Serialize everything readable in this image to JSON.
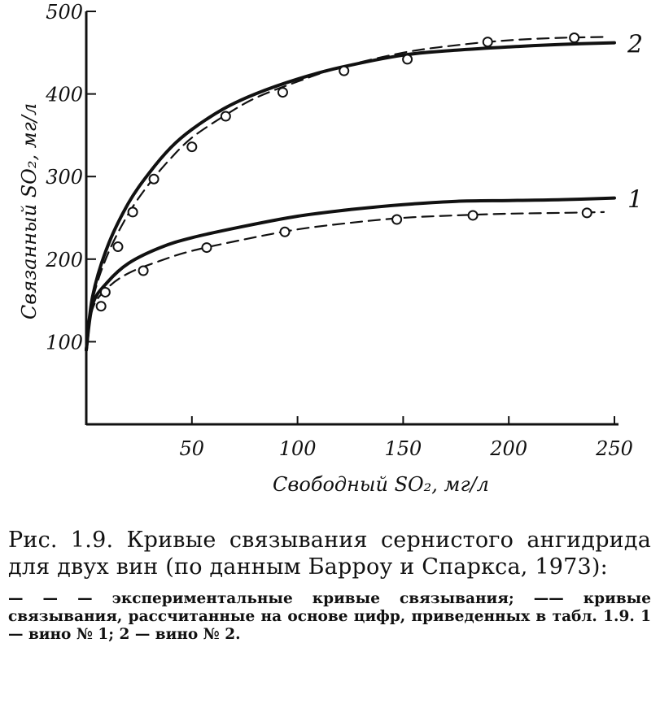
{
  "chart_data": {
    "type": "line",
    "title": "",
    "xlabel": "Свободный SO₂, мг/л",
    "ylabel": "Связанный SO₂, мг/л",
    "xlim": [
      0,
      250
    ],
    "ylim": [
      0,
      500
    ],
    "xticks": [
      50,
      100,
      150,
      200,
      250
    ],
    "yticks": [
      100,
      200,
      300,
      400,
      500
    ],
    "xtick_labels": [
      "50",
      "100",
      "150",
      "200",
      "250"
    ],
    "ytick_labels": [
      "100",
      "200",
      "300",
      "400",
      "500"
    ],
    "grid": false,
    "series": [
      {
        "name": "1",
        "style": "solid",
        "x": [
          0,
          3,
          10,
          20,
          35,
          50,
          75,
          100,
          125,
          150,
          175,
          200,
          225,
          250
        ],
        "y": [
          90,
          145,
          172,
          195,
          214,
          226,
          240,
          252,
          260,
          266,
          270,
          271,
          272,
          274
        ]
      },
      {
        "name": "1",
        "style": "dashed",
        "x": [
          0,
          3,
          10,
          20,
          35,
          50,
          75,
          100,
          125,
          150,
          175,
          200,
          225,
          245
        ],
        "y": [
          90,
          140,
          165,
          183,
          198,
          210,
          224,
          236,
          244,
          250,
          253,
          255,
          256,
          257
        ]
      },
      {
        "name": "2",
        "style": "solid",
        "x": [
          0,
          3,
          10,
          20,
          30,
          40,
          50,
          65,
          80,
          100,
          120,
          150,
          175,
          200,
          225,
          250
        ],
        "y": [
          90,
          155,
          215,
          268,
          305,
          335,
          357,
          382,
          400,
          418,
          432,
          447,
          453,
          457,
          460,
          462
        ]
      },
      {
        "name": "2",
        "style": "dashed",
        "x": [
          0,
          3,
          10,
          20,
          30,
          40,
          50,
          65,
          80,
          100,
          120,
          150,
          175,
          200,
          225,
          245
        ],
        "y": [
          90,
          150,
          205,
          255,
          292,
          322,
          347,
          373,
          395,
          415,
          432,
          450,
          459,
          465,
          468,
          469
        ]
      }
    ],
    "points": [
      {
        "series": "1",
        "x": [
          7,
          27,
          57,
          94,
          147,
          183,
          237
        ],
        "y": [
          143,
          186,
          214,
          233,
          248,
          253,
          256
        ]
      },
      {
        "series": "2",
        "x": [
          9,
          15,
          22,
          32,
          50,
          66,
          93,
          122,
          152,
          190,
          231
        ],
        "y": [
          160,
          215,
          257,
          297,
          336,
          373,
          402,
          428,
          442,
          463,
          468
        ]
      }
    ]
  },
  "caption": {
    "title": "Рис. 1.9. Кривые связывания сернистого ангидрида для двух вин (по данным Барроу и Спаркса, 1973):",
    "legend": "— — — экспериментальные кривые связывания; —— кривые связывания, рассчитанные на основе цифр, приведенных в табл. 1.9. 1 — вино № 1; 2 — вино № 2."
  }
}
